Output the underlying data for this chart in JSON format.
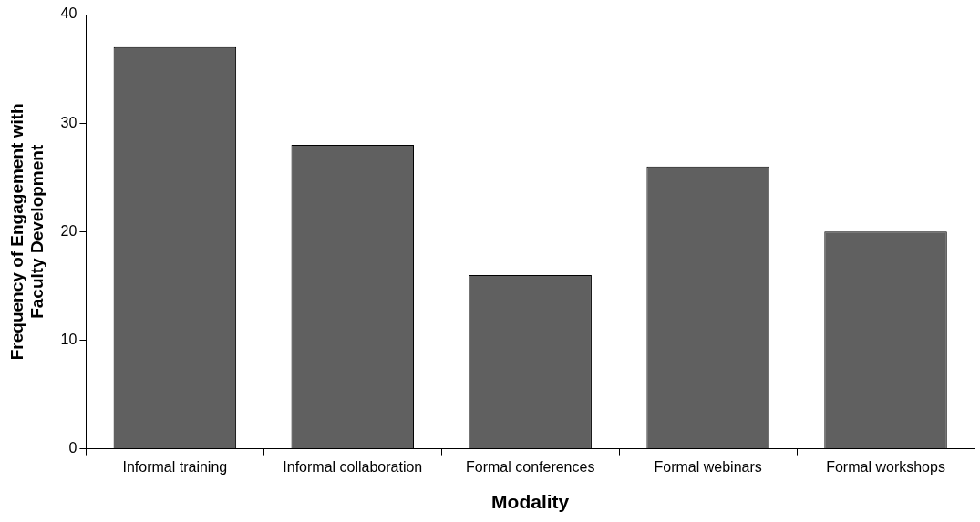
{
  "chart_data": {
    "type": "bar",
    "xlabel": "Modality",
    "ylabel": "Frequency of Engagement with Faculty Development",
    "categories": [
      "Informal training",
      "Informal collaboration",
      "Formal conferences",
      "Formal webinars",
      "Formal workshops"
    ],
    "values": [
      37,
      28,
      16,
      26,
      20
    ],
    "color": "#606060",
    "ylim": [
      0,
      40
    ],
    "yticks": [
      0,
      10,
      20,
      30,
      40
    ],
    "grid": false,
    "legend": false
  }
}
